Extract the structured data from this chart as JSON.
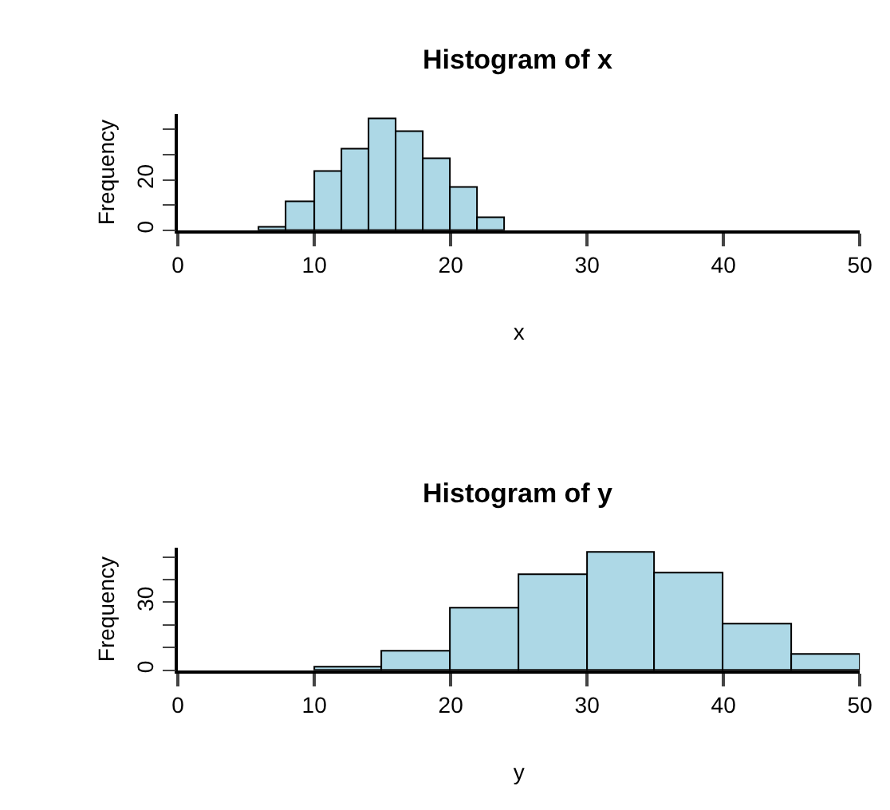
{
  "chart_data": [
    {
      "type": "histogram",
      "title": "Histogram of x",
      "xlabel": "x",
      "ylabel": "Frequency",
      "bins": [
        6,
        8,
        10,
        12,
        14,
        16,
        18,
        20,
        22,
        24
      ],
      "values": [
        1,
        11,
        23,
        32,
        44,
        39,
        28,
        17,
        5
      ],
      "color": "#add8e6",
      "xlim": [
        0,
        50
      ],
      "xticks": [
        0,
        10,
        20,
        30,
        40,
        50
      ],
      "ylim": [
        0,
        46
      ],
      "yticks": [
        0,
        {
          "value": 10,
          "label": null
        },
        20,
        {
          "value": 30,
          "label": null
        },
        {
          "value": 40,
          "label": null
        }
      ]
    },
    {
      "type": "histogram",
      "title": "Histogram of y",
      "xlabel": "y",
      "ylabel": "Frequency",
      "bins": [
        10,
        15,
        20,
        25,
        30,
        35,
        40,
        45,
        50
      ],
      "values": [
        1,
        8,
        27,
        42,
        52,
        43,
        20,
        7
      ],
      "color": "#add8e6",
      "xlim": [
        0,
        50
      ],
      "xticks": [
        0,
        10,
        20,
        30,
        40,
        50
      ],
      "ylim": [
        0,
        54
      ],
      "yticks": [
        0,
        {
          "value": 10,
          "label": null
        },
        {
          "value": 20,
          "label": null
        },
        30,
        {
          "value": 40,
          "label": null
        },
        {
          "value": 50,
          "label": null
        }
      ]
    }
  ]
}
